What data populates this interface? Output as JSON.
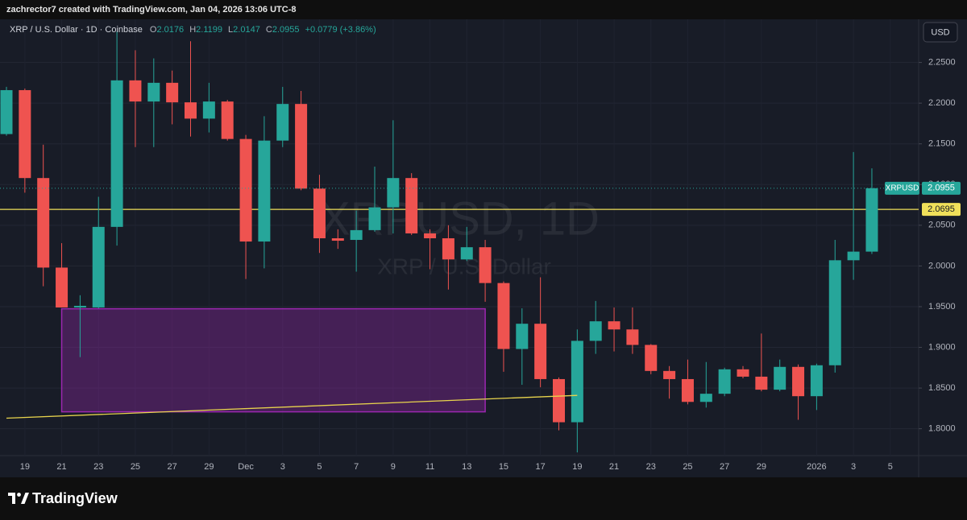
{
  "header": {
    "credit": "zachrector7 created with TradingView.com, Jan 04, 2026 13:06 UTC-8"
  },
  "chart_data": {
    "type": "candlestick",
    "legend_title": "XRP / U.S. Dollar · 1D · Coinbase",
    "ohlc_labels": {
      "open": "O",
      "high": "H",
      "low": "L",
      "close": "C"
    },
    "change": "+0.0779 (+3.86%)",
    "watermark": "XRPUSD, 1D",
    "watermark_subtitle": "XRP / U.S. Dollar",
    "symbol": "XRPUSD",
    "currency": "USD",
    "categories": [
      null,
      "19",
      null,
      "21",
      null,
      "23",
      null,
      "25",
      null,
      "27",
      null,
      "29",
      null,
      "Dec",
      null,
      "3",
      null,
      "5",
      null,
      "7",
      null,
      "9",
      null,
      "11",
      null,
      "13",
      null,
      "15",
      null,
      "17",
      null,
      "19",
      null,
      "21",
      null,
      "23",
      null,
      "25",
      null,
      "27",
      null,
      "29",
      null,
      null,
      "2026",
      null,
      "3",
      null,
      "5"
    ],
    "open": [
      2.162,
      2.216,
      2.108,
      1.998,
      1.949,
      1.949,
      2.048,
      2.228,
      2.202,
      2.225,
      2.201,
      2.181,
      2.202,
      2.156,
      2.03,
      2.154,
      2.199,
      2.095,
      2.034,
      2.032,
      2.044,
      2.072,
      2.108,
      2.04,
      2.034,
      2.008,
      2.023,
      1.979,
      1.898,
      1.929,
      1.861,
      1.808,
      1.908,
      1.932,
      1.922,
      1.903,
      1.871,
      1.861,
      1.833,
      1.843,
      1.873,
      1.864,
      1.848,
      1.876,
      1.84,
      1.878,
      2.007,
      2.0176,
      null
    ],
    "high": [
      2.22,
      2.218,
      2.149,
      2.028,
      1.964,
      2.085,
      2.288,
      2.265,
      2.255,
      2.24,
      2.276,
      2.225,
      2.204,
      2.161,
      2.184,
      2.22,
      2.215,
      2.112,
      2.045,
      2.068,
      2.122,
      2.179,
      2.114,
      2.045,
      2.05,
      2.048,
      2.032,
      1.981,
      1.948,
      1.986,
      1.863,
      1.922,
      1.957,
      1.949,
      1.949,
      1.904,
      1.877,
      1.885,
      1.882,
      1.875,
      1.877,
      1.917,
      1.885,
      1.879,
      1.88,
      2.032,
      2.14,
      2.1199,
      null
    ],
    "low": [
      2.16,
      2.09,
      1.975,
      1.949,
      1.888,
      1.948,
      2.025,
      2.146,
      2.146,
      2.174,
      2.159,
      2.164,
      2.154,
      1.984,
      1.997,
      2.146,
      2.093,
      2.016,
      2.021,
      1.993,
      2.042,
      2.04,
      2.038,
      1.996,
      1.971,
      2.006,
      1.956,
      1.87,
      1.854,
      1.851,
      1.798,
      1.771,
      1.892,
      1.895,
      1.892,
      1.867,
      1.837,
      1.83,
      1.826,
      1.84,
      1.862,
      1.846,
      1.846,
      1.811,
      1.823,
      1.869,
      1.983,
      2.0147,
      null
    ],
    "close": [
      2.216,
      2.108,
      1.998,
      1.949,
      1.951,
      2.048,
      2.228,
      2.202,
      2.225,
      2.201,
      2.181,
      2.202,
      2.156,
      2.03,
      2.154,
      2.199,
      2.095,
      2.034,
      2.031,
      2.044,
      2.072,
      2.108,
      2.04,
      2.034,
      2.008,
      2.023,
      1.979,
      1.898,
      1.929,
      1.861,
      1.808,
      1.908,
      1.932,
      1.922,
      1.903,
      1.871,
      1.861,
      1.833,
      1.843,
      1.873,
      1.864,
      1.848,
      1.876,
      1.84,
      1.878,
      2.007,
      2.0176,
      2.0955,
      null
    ],
    "up_color": "#26a69a",
    "down_color": "#ef5350",
    "ylim": [
      1.768,
      2.302
    ],
    "yticks": [
      {
        "value": 1.8,
        "label": "1.8000"
      },
      {
        "value": 1.85,
        "label": "1.8500"
      },
      {
        "value": 1.9,
        "label": "1.9000"
      },
      {
        "value": 1.95,
        "label": "1.9500"
      },
      {
        "value": 2.0,
        "label": "2.0000"
      },
      {
        "value": 2.05,
        "label": "2.0500"
      },
      {
        "value": 2.1,
        "label": "2.1000"
      },
      {
        "value": 2.15,
        "label": "2.1500"
      },
      {
        "value": 2.2,
        "label": "2.2000"
      },
      {
        "value": 2.25,
        "label": "2.2500"
      }
    ],
    "grid": true,
    "horizontal_line": {
      "value": 2.0695,
      "color": "#f0e05a"
    },
    "rectangle": {
      "from": [
        3,
        1.9474
      ],
      "to": [
        26,
        1.8208
      ],
      "color": "#9c27b0"
    },
    "trend_line": {
      "from": [
        0,
        1.813
      ],
      "to": [
        31,
        1.841
      ],
      "color": "#e8d44d"
    }
  },
  "footer": {
    "brand": "TradingView"
  }
}
